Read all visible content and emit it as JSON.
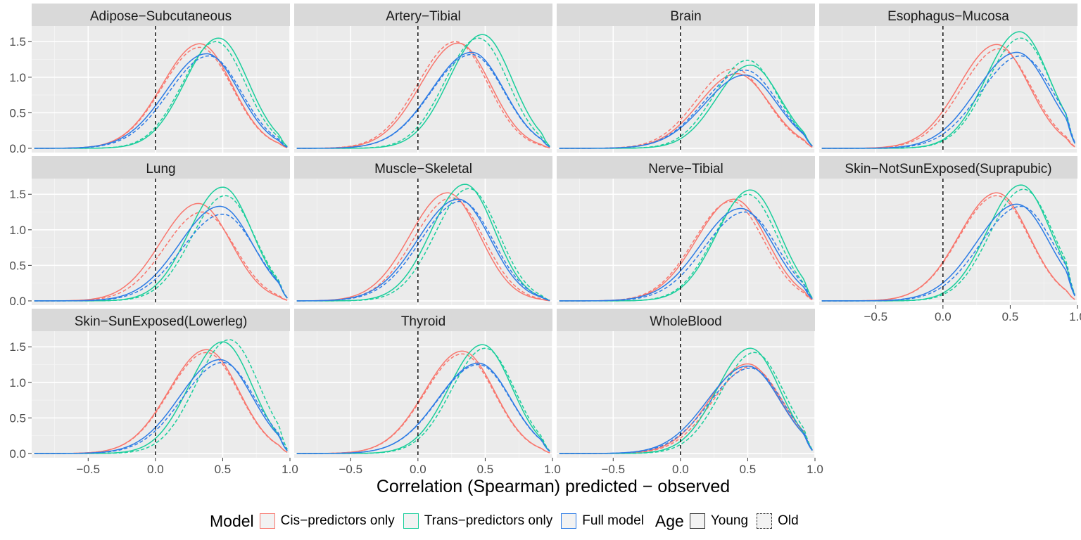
{
  "chart_data": {
    "type": "line",
    "subtype": "density",
    "xlabel": "Correlation (Spearman) predicted − observed",
    "ylabel": "",
    "xlim": [
      -0.92,
      1.0
    ],
    "ylim": [
      -0.06,
      1.72
    ],
    "x_ticks": [
      -0.5,
      0.0,
      0.5,
      1.0
    ],
    "x_tick_labels": [
      "−0.5",
      "0.0",
      "0.5",
      "1.0"
    ],
    "y_ticks": [
      0.0,
      0.5,
      1.0,
      1.5
    ],
    "y_tick_labels": [
      "0.0",
      "0.5",
      "1.0",
      "1.5"
    ],
    "reference_line_x": 0.0,
    "grid": true,
    "colors": {
      "cis": "#F8766D",
      "trans": "#00BFC4",
      "trans_line": "#19CE9B",
      "full": "#2C7BE5",
      "panel_bg": "#EBEBEB",
      "strip_bg": "#D9D9D9"
    },
    "legend": {
      "position": "bottom",
      "model_title": "Model",
      "model_items": [
        {
          "key": "cis",
          "label": "Cis−predictors only"
        },
        {
          "key": "trans",
          "label": "Trans−predictors only"
        },
        {
          "key": "full",
          "label": "Full model"
        }
      ],
      "age_title": "Age",
      "age_items": [
        {
          "key": "young",
          "label": "Young",
          "linetype": "solid"
        },
        {
          "key": "old",
          "label": "Old",
          "linetype": "dashed"
        }
      ]
    },
    "panels": [
      {
        "title": "Adipose−Subcutaneous",
        "peaks": {
          "cis": {
            "young": [
              0.33,
              1.47
            ],
            "old": [
              0.33,
              1.42
            ]
          },
          "trans": {
            "young": [
              0.47,
              1.55
            ],
            "old": [
              0.45,
              1.5
            ]
          },
          "full": {
            "young": [
              0.38,
              1.33
            ],
            "old": [
              0.4,
              1.3
            ]
          }
        }
      },
      {
        "title": "Artery−Tibial",
        "peaks": {
          "cis": {
            "young": [
              0.3,
              1.48
            ],
            "old": [
              0.28,
              1.5
            ]
          },
          "trans": {
            "young": [
              0.48,
              1.6
            ],
            "old": [
              0.45,
              1.55
            ]
          },
          "full": {
            "young": [
              0.4,
              1.35
            ],
            "old": [
              0.4,
              1.32
            ]
          }
        }
      },
      {
        "title": "Brain",
        "peaks": {
          "cis": {
            "young": [
              0.42,
              1.05
            ],
            "old": [
              0.4,
              1.12
            ]
          },
          "trans": {
            "young": [
              0.52,
              1.17
            ],
            "old": [
              0.5,
              1.24
            ]
          },
          "full": {
            "young": [
              0.48,
              1.03
            ],
            "old": [
              0.48,
              1.1
            ]
          }
        }
      },
      {
        "title": "Esophagus−Mucosa",
        "peaks": {
          "cis": {
            "young": [
              0.4,
              1.46
            ],
            "old": [
              0.42,
              1.4
            ]
          },
          "trans": {
            "young": [
              0.57,
              1.64
            ],
            "old": [
              0.58,
              1.55
            ]
          },
          "full": {
            "young": [
              0.55,
              1.35
            ],
            "old": [
              0.58,
              1.3
            ]
          }
        }
      },
      {
        "title": "Lung",
        "peaks": {
          "cis": {
            "young": [
              0.32,
              1.37
            ],
            "old": [
              0.35,
              1.25
            ]
          },
          "trans": {
            "young": [
              0.5,
              1.6
            ],
            "old": [
              0.52,
              1.48
            ]
          },
          "full": {
            "young": [
              0.48,
              1.33
            ],
            "old": [
              0.5,
              1.22
            ]
          }
        }
      },
      {
        "title": "Muscle−Skeletal",
        "peaks": {
          "cis": {
            "young": [
              0.22,
              1.52
            ],
            "old": [
              0.25,
              1.45
            ]
          },
          "trans": {
            "young": [
              0.35,
              1.64
            ],
            "old": [
              0.38,
              1.58
            ]
          },
          "full": {
            "young": [
              0.3,
              1.43
            ],
            "old": [
              0.32,
              1.4
            ]
          }
        }
      },
      {
        "title": "Nerve−Tibial",
        "peaks": {
          "cis": {
            "young": [
              0.4,
              1.43
            ],
            "old": [
              0.38,
              1.4
            ]
          },
          "trans": {
            "young": [
              0.52,
              1.56
            ],
            "old": [
              0.5,
              1.5
            ]
          },
          "full": {
            "young": [
              0.45,
              1.3
            ],
            "old": [
              0.48,
              1.25
            ]
          }
        }
      },
      {
        "title": "Skin−NotSunExposed(Suprapubic)",
        "peaks": {
          "cis": {
            "young": [
              0.4,
              1.52
            ],
            "old": [
              0.4,
              1.48
            ]
          },
          "trans": {
            "young": [
              0.58,
              1.63
            ],
            "old": [
              0.6,
              1.57
            ]
          },
          "full": {
            "young": [
              0.55,
              1.36
            ],
            "old": [
              0.58,
              1.33
            ]
          }
        }
      },
      {
        "title": "Skin−SunExposed(Lowerleg)",
        "peaks": {
          "cis": {
            "young": [
              0.38,
              1.46
            ],
            "old": [
              0.38,
              1.42
            ]
          },
          "trans": {
            "young": [
              0.5,
              1.57
            ],
            "old": [
              0.55,
              1.6
            ]
          },
          "full": {
            "young": [
              0.48,
              1.32
            ],
            "old": [
              0.5,
              1.28
            ]
          }
        }
      },
      {
        "title": "Thyroid",
        "peaks": {
          "cis": {
            "young": [
              0.33,
              1.44
            ],
            "old": [
              0.33,
              1.4
            ]
          },
          "trans": {
            "young": [
              0.48,
              1.53
            ],
            "old": [
              0.5,
              1.48
            ]
          },
          "full": {
            "young": [
              0.45,
              1.27
            ],
            "old": [
              0.45,
              1.25
            ]
          }
        }
      },
      {
        "title": "WholeBlood",
        "peaks": {
          "cis": {
            "young": [
              0.5,
              1.26
            ],
            "old": [
              0.52,
              1.22
            ]
          },
          "trans": {
            "young": [
              0.52,
              1.48
            ],
            "old": [
              0.55,
              1.42
            ]
          },
          "full": {
            "young": [
              0.5,
              1.23
            ],
            "old": [
              0.52,
              1.2
            ]
          }
        }
      }
    ]
  }
}
